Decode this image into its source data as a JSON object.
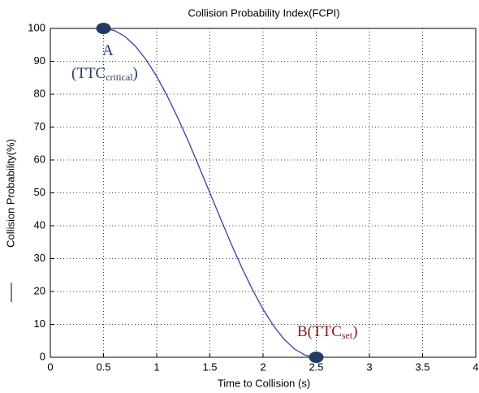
{
  "chart_data": {
    "type": "line",
    "title": "Collision Probability Index(FCPI)",
    "xlabel": "Time to Collision (s)",
    "ylabel": "Collision Probability(%)",
    "x": [
      0.5,
      0.6,
      0.7,
      0.8,
      0.9,
      1.0,
      1.1,
      1.2,
      1.3,
      1.4,
      1.5,
      1.6,
      1.7,
      1.8,
      1.9,
      2.0,
      2.1,
      2.2,
      2.3,
      2.4,
      2.5
    ],
    "series": [
      {
        "color": "#3a3acb",
        "values": [
          100,
          99.4,
          97.6,
          94.6,
          90.5,
          85.4,
          79.4,
          72.7,
          65.5,
          57.8,
          50,
          42.2,
          34.5,
          27.3,
          20.6,
          14.6,
          9.5,
          5.4,
          2.4,
          0.6,
          0
        ]
      }
    ],
    "markers": {
      "color": "#213a66",
      "x": [
        0.5,
        2.5
      ],
      "values": [
        100,
        0
      ]
    },
    "annotations": [
      {
        "text": "A",
        "color": "#213a66"
      },
      {
        "text": "(TTC",
        "sub": "critical",
        "suffix": ")",
        "color": "#213a66"
      },
      {
        "text": "B(TTC",
        "sub": "set",
        "suffix": ")",
        "color": "#8b1a1a"
      }
    ],
    "xlim": [
      0,
      4
    ],
    "xticks": [
      0,
      0.5,
      1,
      1.5,
      2,
      2.5,
      3,
      3.5,
      4
    ],
    "ylim": [
      0,
      100
    ],
    "yticks": [
      0,
      10,
      20,
      30,
      40,
      50,
      60,
      70,
      80,
      90,
      100
    ],
    "grid": true
  }
}
